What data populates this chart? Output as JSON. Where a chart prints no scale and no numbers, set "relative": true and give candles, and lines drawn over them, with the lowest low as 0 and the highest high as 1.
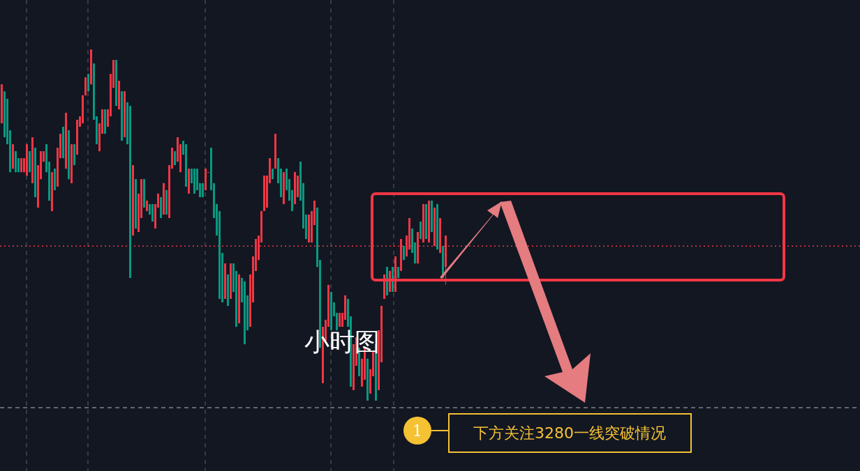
{
  "chart_data": {
    "type": "candlestick",
    "relative": true,
    "categories": [
      null,
      null,
      null,
      null,
      null,
      null,
      null,
      null,
      null,
      null,
      null,
      null,
      null,
      null,
      null,
      null,
      null,
      null,
      null,
      null,
      null,
      null,
      null,
      null,
      null,
      null,
      null,
      null,
      null,
      null,
      null,
      null,
      null,
      null,
      null,
      null,
      null,
      null,
      null,
      null,
      null,
      null,
      null,
      null,
      null,
      null,
      null,
      null,
      null,
      null,
      null,
      null,
      null,
      null,
      null,
      null,
      null,
      null,
      null,
      null,
      null,
      null,
      null,
      null,
      null,
      null,
      null,
      null,
      null,
      null,
      null,
      null,
      null,
      null,
      null,
      null,
      null,
      null,
      null,
      null,
      null,
      null,
      null,
      null,
      null,
      null,
      null,
      null,
      null,
      null,
      null,
      null,
      null,
      null,
      null,
      null,
      null,
      null,
      null,
      null,
      null,
      null,
      null,
      null,
      null,
      null,
      null,
      null,
      null,
      null,
      null,
      null,
      null,
      null,
      null,
      null,
      null,
      null,
      null,
      null,
      null,
      null,
      null,
      null,
      null,
      null,
      null,
      null,
      null,
      null,
      null,
      null,
      null,
      null,
      null,
      null,
      null,
      null,
      null,
      null,
      null,
      null,
      null,
      null,
      null,
      null,
      null,
      null,
      null,
      null,
      null,
      null,
      null,
      null,
      null,
      null,
      null,
      null,
      null,
      null
    ],
    "colors": [
      "#f23645",
      "#089981",
      "#089981",
      "#089981",
      "#f23645",
      "#089981",
      "#089981",
      "#f23645",
      "#f23645",
      "#f23645",
      "#089981",
      "#f23645",
      "#089981",
      "#f23645",
      "#f23645",
      "#f23645",
      "#089981",
      "#089981",
      "#f23645",
      "#089981",
      "#f23645",
      "#f23645",
      "#089981",
      "#f23645",
      "#089981",
      "#f23645",
      "#089981",
      "#f23645",
      "#f23645",
      "#f23645",
      "#f23645",
      "#089981",
      "#f23645",
      "#089981",
      "#089981",
      "#f23645",
      "#f23645",
      "#089981",
      "#f23645",
      "#f23645",
      "#f23645",
      "#089981",
      "#f23645",
      "#089981",
      "#f23645",
      "#089981",
      "#089981",
      "#f23645",
      "#089981",
      "#f23645",
      "#f23645",
      "#089981",
      "#f23645",
      "#089981",
      "#089981",
      "#f23645",
      "#f23645",
      "#089981",
      "#f23645",
      "#089981",
      "#f23645",
      "#f23645",
      "#089981",
      "#f23645",
      "#f23645",
      "#089981",
      "#089981",
      "#f23645",
      "#089981",
      "#089981",
      "#089981",
      "#089981",
      "#089981",
      "#f23645",
      "#f23645",
      "#089981",
      "#089981",
      "#089981",
      "#089981",
      "#089981",
      "#f23645",
      "#089981",
      "#f23645",
      "#089981",
      "#089981",
      "#f23645",
      "#089981",
      "#089981",
      "#089981",
      "#f23645",
      "#f23645",
      "#f23645",
      "#f23645",
      "#f23645",
      "#f23645",
      "#f23645",
      "#f23645",
      "#089981",
      "#f23645",
      "#089981",
      "#089981",
      "#f23645",
      "#089981",
      "#089981",
      "#089981",
      "#f23645",
      "#f23645",
      "#089981",
      "#089981",
      "#089981",
      "#f23645",
      "#f23645",
      "#f23645",
      "#089981",
      "#089981",
      "#f23645",
      "#f23645",
      "#f23645",
      "#089981",
      "#089981",
      "#089981",
      "#f23645",
      "#f23645",
      "#f23645",
      "#089981",
      "#089981",
      "#f23645",
      "#f23645",
      "#089981",
      "#f23645",
      "#f23645",
      "#089981",
      "#f23645",
      "#f23645",
      "#089981",
      "#f23645",
      "#f23645",
      "#f23645",
      "#089981",
      "#f23645",
      "#089981",
      "#f23645",
      "#089981",
      "#f23645",
      "#089981",
      "#f23645",
      "#f23645",
      "#089981",
      "#089981",
      "#f23645",
      "#089981",
      "#f23645",
      "#089981",
      "#f23645",
      "#089981",
      "#f23645",
      "#089981",
      "#f23645",
      "#089981",
      "#f23645"
    ],
    "ohlc": [
      [
        0.79,
        0.9,
        0.79,
        0.9
      ],
      [
        0.88,
        0.88,
        0.75,
        0.75
      ],
      [
        0.86,
        0.86,
        0.73,
        0.73
      ],
      [
        0.77,
        0.77,
        0.65,
        0.65
      ],
      [
        0.66,
        0.73,
        0.66,
        0.73
      ],
      [
        0.71,
        0.71,
        0.65,
        0.65
      ],
      [
        0.69,
        0.69,
        0.65,
        0.65
      ],
      [
        0.65,
        0.69,
        0.65,
        0.69
      ],
      [
        0.65,
        0.69,
        0.65,
        0.69
      ],
      [
        0.64,
        0.73,
        0.64,
        0.73
      ],
      [
        0.71,
        0.71,
        0.65,
        0.65
      ],
      [
        0.62,
        0.75,
        0.62,
        0.75
      ],
      [
        0.72,
        0.72,
        0.58,
        0.58
      ],
      [
        0.55,
        0.67,
        0.55,
        0.67
      ],
      [
        0.63,
        0.71,
        0.63,
        0.71
      ],
      [
        0.68,
        0.71,
        0.68,
        0.71
      ],
      [
        0.73,
        0.73,
        0.65,
        0.65
      ],
      [
        0.68,
        0.68,
        0.57,
        0.57
      ],
      [
        0.54,
        0.65,
        0.54,
        0.65
      ],
      [
        0.66,
        0.66,
        0.6,
        0.6
      ],
      [
        0.61,
        0.72,
        0.61,
        0.72
      ],
      [
        0.69,
        0.76,
        0.69,
        0.76
      ],
      [
        0.78,
        0.78,
        0.69,
        0.69
      ],
      [
        0.66,
        0.82,
        0.66,
        0.82
      ],
      [
        0.77,
        0.77,
        0.63,
        0.63
      ],
      [
        0.62,
        0.73,
        0.62,
        0.73
      ],
      [
        0.73,
        0.73,
        0.67,
        0.67
      ],
      [
        0.7,
        0.8,
        0.7,
        0.8
      ],
      [
        0.78,
        0.81,
        0.78,
        0.81
      ],
      [
        0.79,
        0.87,
        0.79,
        0.87
      ],
      [
        0.87,
        0.92,
        0.87,
        0.92
      ],
      [
        0.93,
        0.93,
        0.88,
        0.88
      ],
      [
        0.9,
        1.0,
        0.9,
        1.0
      ],
      [
        0.96,
        0.96,
        0.8,
        0.8
      ],
      [
        0.81,
        0.81,
        0.73,
        0.73
      ],
      [
        0.71,
        0.79,
        0.71,
        0.79
      ],
      [
        0.76,
        0.83,
        0.76,
        0.83
      ],
      [
        0.83,
        0.83,
        0.76,
        0.76
      ],
      [
        0.78,
        0.83,
        0.78,
        0.83
      ],
      [
        0.81,
        0.93,
        0.81,
        0.93
      ],
      [
        0.89,
        0.97,
        0.89,
        0.97
      ],
      [
        0.97,
        0.97,
        0.84,
        0.84
      ],
      [
        0.83,
        0.91,
        0.83,
        0.91
      ],
      [
        0.88,
        0.88,
        0.74,
        0.74
      ],
      [
        0.75,
        0.88,
        0.75,
        0.88
      ],
      [
        0.85,
        0.85,
        0.73,
        0.73
      ],
      [
        0.84,
        0.84,
        0.35,
        0.35
      ],
      [
        0.47,
        0.67,
        0.47,
        0.67
      ],
      [
        0.63,
        0.63,
        0.49,
        0.49
      ],
      [
        0.48,
        0.59,
        0.48,
        0.59
      ],
      [
        0.52,
        0.63,
        0.52,
        0.63
      ],
      [
        0.63,
        0.63,
        0.55,
        0.55
      ],
      [
        0.54,
        0.57,
        0.54,
        0.57
      ],
      [
        0.56,
        0.56,
        0.53,
        0.53
      ],
      [
        0.56,
        0.56,
        0.51,
        0.51
      ],
      [
        0.49,
        0.56,
        0.49,
        0.56
      ],
      [
        0.55,
        0.59,
        0.55,
        0.59
      ],
      [
        0.58,
        0.58,
        0.52,
        0.52
      ],
      [
        0.53,
        0.62,
        0.53,
        0.62
      ],
      [
        0.6,
        0.6,
        0.53,
        0.53
      ],
      [
        0.52,
        0.67,
        0.52,
        0.67
      ],
      [
        0.66,
        0.72,
        0.66,
        0.72
      ],
      [
        0.71,
        0.71,
        0.67,
        0.67
      ],
      [
        0.68,
        0.75,
        0.68,
        0.75
      ],
      [
        0.65,
        0.73,
        0.65,
        0.73
      ],
      [
        0.74,
        0.74,
        0.7,
        0.7
      ],
      [
        0.73,
        0.73,
        0.61,
        0.61
      ],
      [
        0.59,
        0.66,
        0.59,
        0.66
      ],
      [
        0.66,
        0.66,
        0.62,
        0.62
      ],
      [
        0.66,
        0.66,
        0.59,
        0.59
      ],
      [
        0.66,
        0.66,
        0.6,
        0.6
      ],
      [
        0.62,
        0.62,
        0.58,
        0.58
      ],
      [
        0.62,
        0.62,
        0.58,
        0.58
      ],
      [
        0.6,
        0.66,
        0.6,
        0.66
      ],
      [
        0.65,
        0.65,
        0.65,
        0.65
      ],
      [
        0.72,
        0.72,
        0.6,
        0.6
      ],
      [
        0.62,
        0.62,
        0.52,
        0.52
      ],
      [
        0.56,
        0.56,
        0.47,
        0.47
      ],
      [
        0.54,
        0.54,
        0.29,
        0.29
      ],
      [
        0.42,
        0.42,
        0.28,
        0.28
      ],
      [
        0.29,
        0.39,
        0.29,
        0.39
      ],
      [
        0.36,
        0.36,
        0.27,
        0.27
      ],
      [
        0.29,
        0.39,
        0.29,
        0.39
      ],
      [
        0.39,
        0.39,
        0.31,
        0.31
      ],
      [
        0.37,
        0.37,
        0.21,
        0.21
      ],
      [
        0.22,
        0.36,
        0.22,
        0.36
      ],
      [
        0.35,
        0.35,
        0.28,
        0.28
      ],
      [
        0.34,
        0.34,
        0.16,
        0.16
      ],
      [
        0.3,
        0.3,
        0.2,
        0.2
      ],
      [
        0.21,
        0.36,
        0.21,
        0.36
      ],
      [
        0.28,
        0.41,
        0.28,
        0.41
      ],
      [
        0.37,
        0.46,
        0.37,
        0.46
      ],
      [
        0.4,
        0.47,
        0.4,
        0.47
      ],
      [
        0.45,
        0.54,
        0.45,
        0.54
      ],
      [
        0.54,
        0.64,
        0.54,
        0.64
      ],
      [
        0.55,
        0.64,
        0.55,
        0.64
      ],
      [
        0.62,
        0.69,
        0.62,
        0.69
      ],
      [
        0.66,
        0.66,
        0.63,
        0.63
      ],
      [
        0.66,
        0.76,
        0.66,
        0.76
      ],
      [
        0.69,
        0.69,
        0.62,
        0.62
      ],
      [
        0.66,
        0.66,
        0.58,
        0.58
      ],
      [
        0.56,
        0.65,
        0.56,
        0.65
      ],
      [
        0.66,
        0.66,
        0.6,
        0.6
      ],
      [
        0.63,
        0.63,
        0.57,
        0.57
      ],
      [
        0.6,
        0.6,
        0.54,
        0.54
      ],
      [
        0.56,
        0.65,
        0.56,
        0.65
      ],
      [
        0.58,
        0.64,
        0.58,
        0.64
      ],
      [
        0.68,
        0.68,
        0.57,
        0.57
      ],
      [
        0.62,
        0.62,
        0.49,
        0.49
      ],
      [
        0.53,
        0.53,
        0.46,
        0.46
      ],
      [
        0.45,
        0.53,
        0.45,
        0.53
      ],
      [
        0.45,
        0.54,
        0.45,
        0.54
      ],
      [
        0.5,
        0.57,
        0.5,
        0.57
      ],
      [
        0.55,
        0.55,
        0.38,
        0.38
      ],
      [
        0.4,
        0.4,
        0.15,
        0.15
      ],
      [
        0.05,
        0.21,
        0.05,
        0.21
      ],
      [
        0.17,
        0.23,
        0.17,
        0.23
      ],
      [
        0.21,
        0.33,
        0.21,
        0.33
      ],
      [
        0.31,
        0.31,
        0.2,
        0.2
      ],
      [
        0.28,
        0.28,
        0.24,
        0.24
      ],
      [
        0.25,
        0.25,
        0.2,
        0.2
      ],
      [
        0.21,
        0.25,
        0.21,
        0.25
      ],
      [
        0.21,
        0.25,
        0.21,
        0.25
      ],
      [
        0.23,
        0.3,
        0.23,
        0.3
      ],
      [
        0.29,
        0.29,
        0.21,
        0.21
      ],
      [
        0.24,
        0.24,
        0.04,
        0.04
      ],
      [
        0.03,
        0.16,
        0.03,
        0.16
      ],
      [
        0.1,
        0.18,
        0.1,
        0.18
      ],
      [
        0.15,
        0.15,
        0.07,
        0.07
      ],
      [
        0.04,
        0.12,
        0.04,
        0.12
      ],
      [
        0.06,
        0.15,
        0.06,
        0.15
      ],
      [
        0.12,
        0.12,
        0.0,
        0.0
      ],
      [
        0.02,
        0.09,
        0.02,
        0.09
      ],
      [
        0.07,
        0.14,
        0.07,
        0.14
      ],
      [
        0.16,
        0.16,
        0.0,
        0.0
      ],
      [
        0.03,
        0.2,
        0.03,
        0.2
      ],
      [
        0.11,
        0.27,
        0.11,
        0.27
      ],
      [
        0.29,
        0.36,
        0.29,
        0.36
      ],
      [
        0.38,
        0.38,
        0.3,
        0.3
      ],
      [
        0.31,
        0.37,
        0.31,
        0.37
      ],
      [
        0.38,
        0.38,
        0.31,
        0.31
      ],
      [
        0.31,
        0.41,
        0.31,
        0.41
      ],
      [
        0.38,
        0.38,
        0.35,
        0.35
      ],
      [
        0.37,
        0.46,
        0.37,
        0.46
      ],
      [
        0.44,
        0.44,
        0.4,
        0.4
      ],
      [
        0.41,
        0.47,
        0.41,
        0.47
      ],
      [
        0.43,
        0.52,
        0.43,
        0.52
      ],
      [
        0.49,
        0.49,
        0.42,
        0.42
      ],
      [
        0.45,
        0.45,
        0.39,
        0.39
      ],
      [
        0.39,
        0.48,
        0.39,
        0.48
      ],
      [
        0.51,
        0.51,
        0.46,
        0.46
      ],
      [
        0.45,
        0.56,
        0.45,
        0.56
      ],
      [
        0.56,
        0.56,
        0.46,
        0.46
      ],
      [
        0.45,
        0.57,
        0.45,
        0.57
      ],
      [
        0.57,
        0.57,
        0.48,
        0.48
      ],
      [
        0.44,
        0.55,
        0.44,
        0.55
      ],
      [
        0.56,
        0.56,
        0.43,
        0.43
      ],
      [
        0.42,
        0.52,
        0.42,
        0.52
      ],
      [
        0.44,
        0.44,
        0.35,
        0.35
      ],
      [
        0.38,
        0.47,
        0.33,
        0.47
      ]
    ],
    "ref_lines": [
      {
        "axis": "y",
        "value": 0.44,
        "color": "#f23645",
        "line_style": "dotted"
      },
      {
        "axis": "y",
        "value": -0.02,
        "color": "#9598a1",
        "line_style": "dashed"
      }
    ],
    "annotations": [
      "小时图",
      "1",
      "下方关注3280一线突破情况"
    ]
  }
}
